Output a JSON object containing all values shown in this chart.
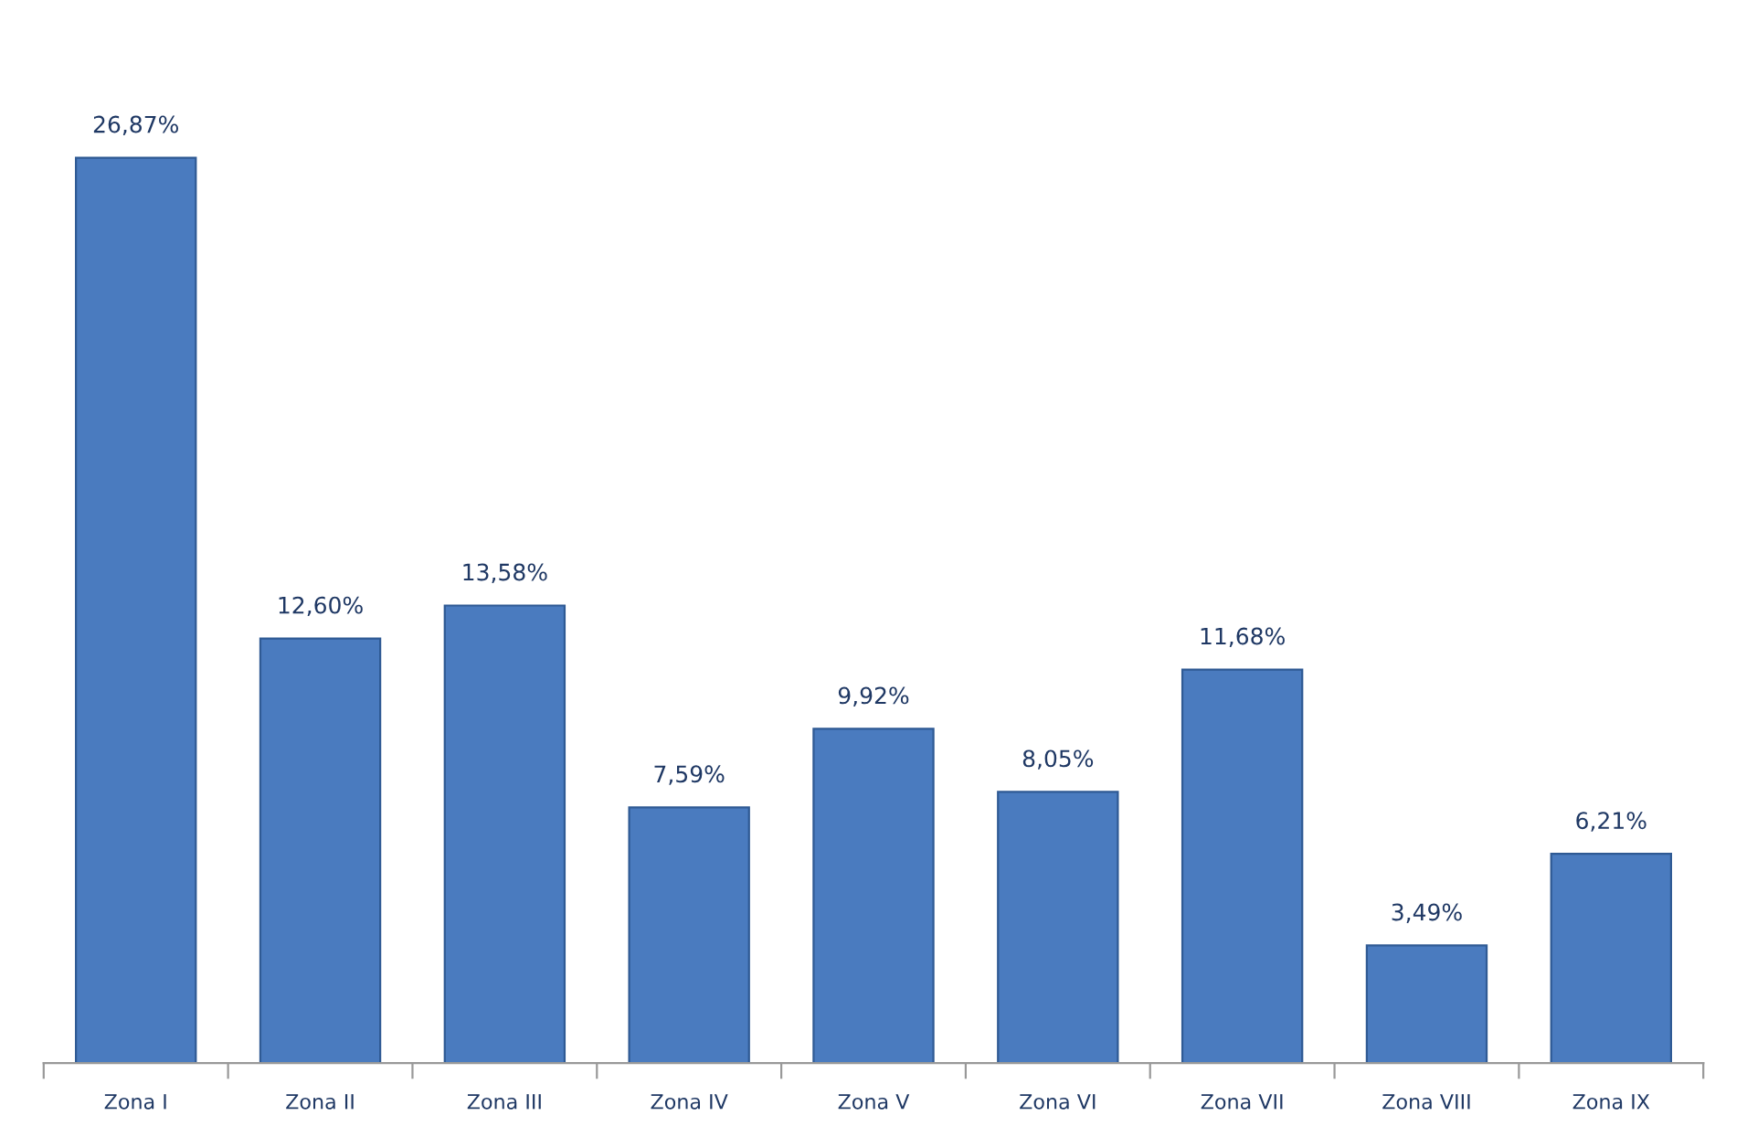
{
  "chart_data": {
    "type": "bar",
    "categories": [
      "Zona I",
      "Zona II",
      "Zona III",
      "Zona IV",
      "Zona V",
      "Zona VI",
      "Zona VII",
      "Zona VIII",
      "Zona IX"
    ],
    "values": [
      26.87,
      12.6,
      13.58,
      7.59,
      9.92,
      8.05,
      11.68,
      3.49,
      6.21
    ],
    "value_labels": [
      "26,87%",
      "12,60%",
      "13,58%",
      "7,59%",
      "9,92%",
      "8,05%",
      "11,68%",
      "3,49%",
      "6,21%"
    ],
    "color": "#4a7bbf",
    "grid": false,
    "legend": false
  }
}
